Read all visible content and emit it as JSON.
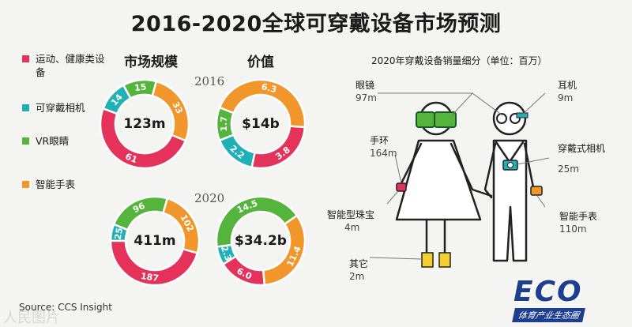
{
  "title": "2016-2020全球可穿戴设备市场预测",
  "colors": {
    "red": "#e5325a",
    "teal": "#1fb0b8",
    "green": "#55b43c",
    "orange": "#f0962a"
  },
  "legend": [
    {
      "label": "运动、健康类设备",
      "color": "#e5325a"
    },
    {
      "label": "可穿戴相机",
      "color": "#1fb0b8"
    },
    {
      "label": "VR眼睛",
      "color": "#55b43c"
    },
    {
      "label": "智能手表",
      "color": "#f0962a"
    }
  ],
  "headers": {
    "market": "市场规模",
    "value": "价值"
  },
  "years": [
    "2016",
    "2020"
  ],
  "chart_data": [
    {
      "type": "pie",
      "title": "市场规模",
      "year": "2016",
      "center_label": "123m",
      "slices": [
        {
          "name": "运动、健康类设备",
          "label": "61",
          "value": 61
        },
        {
          "name": "可穿戴相机",
          "label": "14",
          "value": 14
        },
        {
          "name": "VR眼睛",
          "label": "15",
          "value": 15
        },
        {
          "name": "智能手表",
          "label": "33",
          "value": 33
        }
      ]
    },
    {
      "type": "pie",
      "title": "价值",
      "year": "2016",
      "center_label": "$14b",
      "slices": [
        {
          "name": "运动、健康类设备",
          "label": "3.8",
          "value": 3.8
        },
        {
          "name": "可穿戴相机",
          "label": "2.2",
          "value": 2.2
        },
        {
          "name": "VR眼睛",
          "label": "1.7",
          "value": 1.7
        },
        {
          "name": "智能手表",
          "label": "6.3",
          "value": 6.3
        }
      ]
    },
    {
      "type": "pie",
      "title": "市场规模",
      "year": "2020",
      "center_label": "411m",
      "slices": [
        {
          "name": "运动、健康类设备",
          "label": "187",
          "value": 187
        },
        {
          "name": "可穿戴相机",
          "label": "25",
          "value": 25
        },
        {
          "name": "VR眼睛",
          "label": "96",
          "value": 96
        },
        {
          "name": "智能手表",
          "label": "102",
          "value": 102
        }
      ]
    },
    {
      "type": "pie",
      "title": "价值",
      "year": "2020",
      "center_label": "$34.2b",
      "slices": [
        {
          "name": "运动、健康类设备",
          "label": "6.0",
          "value": 6.0
        },
        {
          "name": "可穿戴相机",
          "label": "2.3",
          "value": 2.3
        },
        {
          "name": "VR眼睛",
          "label": "14.5",
          "value": 14.5
        },
        {
          "name": "智能手表",
          "label": "11.4",
          "value": 11.4
        }
      ]
    }
  ],
  "breakdown": {
    "title": "2020年穿戴设备销量细分（单位：百万）",
    "items": [
      {
        "name": "眼镜",
        "value": "97m"
      },
      {
        "name": "耳机",
        "value": "9m"
      },
      {
        "name": "手环",
        "value": "164m"
      },
      {
        "name": "穿戴式相机",
        "value": "25m"
      },
      {
        "name": "智能型珠宝",
        "value": "4m"
      },
      {
        "name": "智能手表",
        "value": "110m"
      },
      {
        "name": "其它",
        "value": "2m"
      }
    ]
  },
  "source": "Source: CCS Insight",
  "watermark": "人民图片",
  "logo": {
    "main": "ECO",
    "sub": "体育产业生态圈"
  }
}
